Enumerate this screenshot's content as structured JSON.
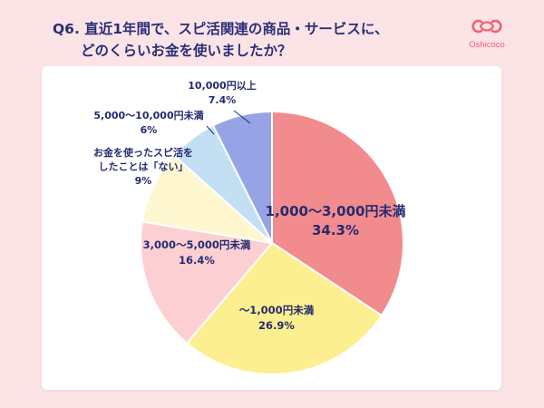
{
  "header": {
    "title_line1": "Q6. 直近1年間で、スピ活関連の商品・サービスに、",
    "title_line2": "どのくらいお金を使いましたか？",
    "brand": "Oshicoco"
  },
  "colors": {
    "background": "#fbe3e6",
    "title": "#2a2f7a",
    "brand": "#f0616f"
  },
  "chart_data": {
    "type": "pie",
    "start": "12 o'clock",
    "direction": "clockwise",
    "slices": [
      {
        "label": "1,000〜3,000円未満",
        "value": 34.3,
        "display": "34.3%",
        "color": "#f28b8d"
      },
      {
        "label": "〜1,000円未満",
        "value": 26.9,
        "display": "26.9%",
        "color": "#fcef8f"
      },
      {
        "label": "3,000〜5,000円未満",
        "value": 16.4,
        "display": "16.4%",
        "color": "#fcd0d2"
      },
      {
        "label_lines": [
          "お金を使ったスピ活を",
          "したことは「ない」"
        ],
        "value": 9,
        "display": "9%",
        "color": "#fef7cf"
      },
      {
        "label": "5,000〜10,000円未満",
        "value": 6,
        "display": "6%",
        "color": "#c2dff4"
      },
      {
        "label": "10,000円以上",
        "value": 7.4,
        "display": "7.4%",
        "color": "#96a4e6"
      }
    ]
  }
}
